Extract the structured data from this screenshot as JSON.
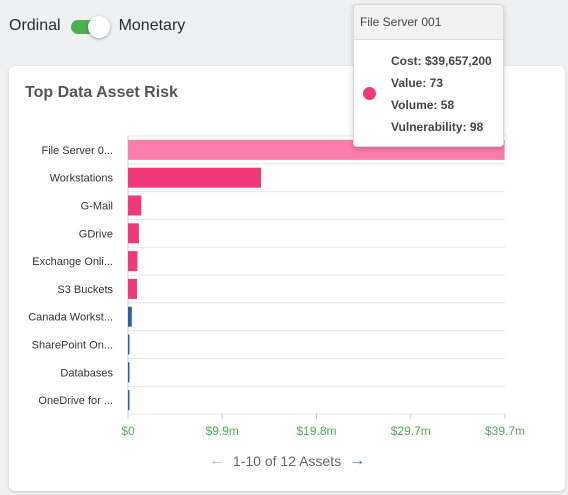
{
  "toggle": {
    "left_label": "Ordinal",
    "right_label": "Monetary",
    "selected": "Monetary"
  },
  "card": {
    "title": "Top Data Asset Risk"
  },
  "chart_data": {
    "type": "bar",
    "orientation": "horizontal",
    "categories": [
      "File Server 0...",
      "Workstations",
      "G-Mail",
      "GDrive",
      "Exchange Onli...",
      "S3 Buckets",
      "Canada Workst...",
      "SharePoint On...",
      "Databases",
      "OneDrive for ..."
    ],
    "values": [
      39657200,
      14000000,
      1400000,
      1150000,
      1000000,
      950000,
      400000,
      150000,
      120000,
      100000
    ],
    "colors": [
      "#fc7cab",
      "#f0387a",
      "#f0387a",
      "#f0387a",
      "#f0387a",
      "#f0387a",
      "#2c5fa0",
      "#2c5fa0",
      "#2c5fa0",
      "#2c5fa0"
    ],
    "xlim": [
      0,
      39700000
    ],
    "xticks": [
      "$0",
      "$9.9m",
      "$19.8m",
      "$29.7m",
      "$39.7m"
    ],
    "xtick_color": "#4caf50",
    "grid": true
  },
  "pager": {
    "text": "1-10 of 12 Assets"
  },
  "tooltip": {
    "title": "File Server 001",
    "cost": "Cost: $39,657,200",
    "value": "Value: 73",
    "volume": "Volume: 58",
    "vulnerability": "Vulnerability: 98",
    "color": "#f0387a"
  }
}
